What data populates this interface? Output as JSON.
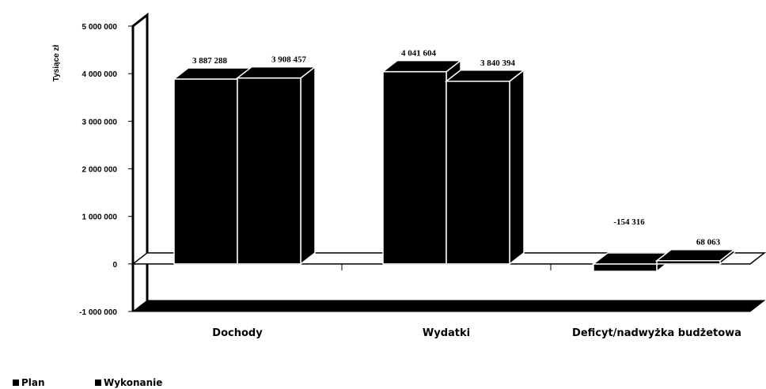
{
  "chart_data": {
    "type": "bar",
    "style": "3d-column",
    "ylabel": "Tysiące zł",
    "xlabel": "",
    "ylim": [
      -1000000,
      5000000
    ],
    "yticks": [
      5000000,
      4000000,
      3000000,
      2000000,
      1000000,
      0,
      -1000000
    ],
    "ytick_labels": [
      "5 000 000",
      "4 000 000",
      "3 000 000",
      "2 000 000",
      "1 000 000",
      "0",
      "-1 000 000"
    ],
    "categories": [
      "Dochody",
      "Wydatki",
      "Deficyt/nadwyżka budżetowa"
    ],
    "series": [
      {
        "name": "Plan",
        "values": [
          3887288,
          4041604,
          -154316
        ],
        "labels": [
          "3 887 288",
          "4 041 604",
          "-154 316"
        ]
      },
      {
        "name": "Wykonanie",
        "values": [
          3908457,
          3840394,
          68063
        ],
        "labels": [
          "3 908 457",
          "3 840 394",
          "68 063"
        ]
      }
    ],
    "legend_position": "bottom-left",
    "grid": false,
    "colors": {
      "bars": "#000000",
      "edges": "#ffffff"
    }
  }
}
